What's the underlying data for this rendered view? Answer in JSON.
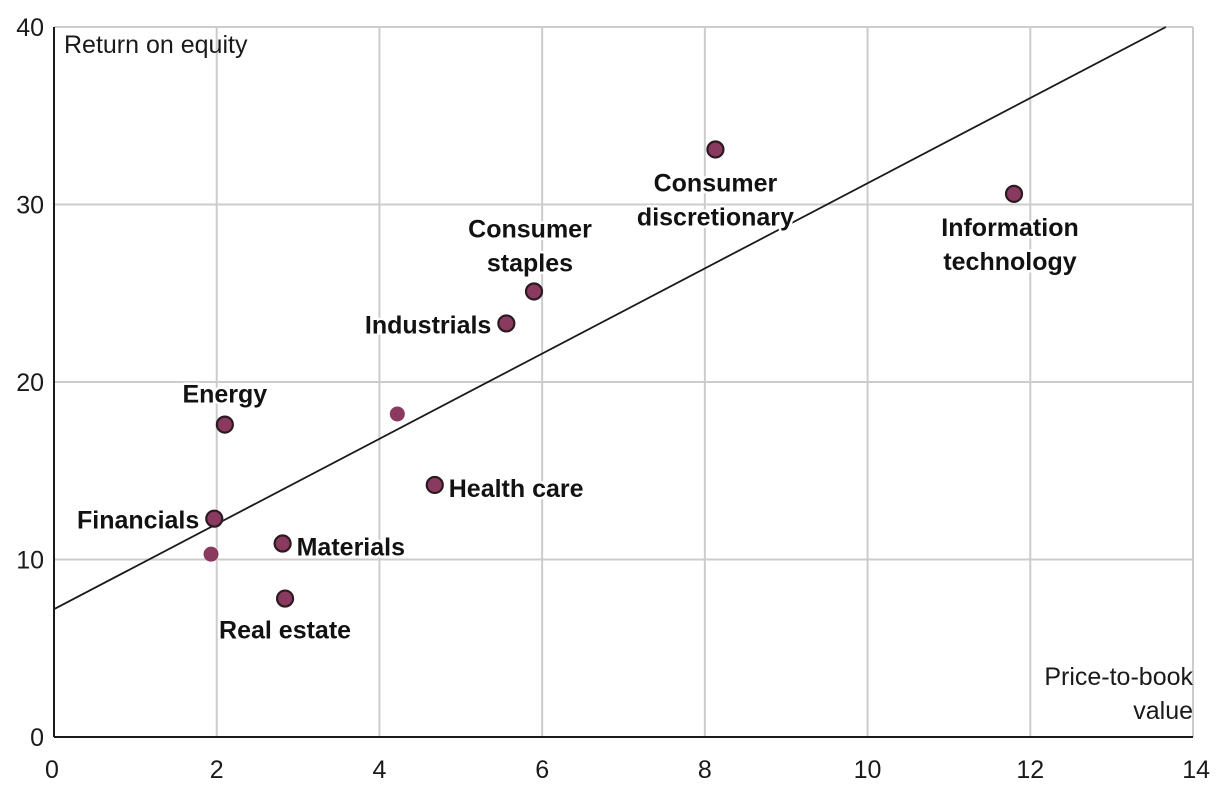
{
  "chart_data": {
    "type": "scatter",
    "ylabel": "Return on equity",
    "xlabel_lines": [
      "Price-to-book",
      "value"
    ],
    "xlim": [
      0,
      14
    ],
    "ylim": [
      0,
      40
    ],
    "xticks": [
      0,
      2,
      4,
      6,
      8,
      10,
      12,
      14
    ],
    "yticks": [
      0,
      10,
      20,
      30,
      40
    ],
    "grid": true,
    "colors": {
      "point": "#8b3a5f",
      "outline": "#2b1a22",
      "grid": "#cccccc",
      "axis": "#1a1a1a",
      "trend": "#1a1a1a"
    },
    "trendline": {
      "intercept": 7.2,
      "slope": 2.4
    },
    "points": [
      {
        "name": "Energy",
        "label_lines": [
          "Energy"
        ],
        "x": 2.1,
        "y": 17.6,
        "outlined": true
      },
      {
        "name": "Financials",
        "label_lines": [
          "Financials"
        ],
        "x": 1.97,
        "y": 12.3,
        "outlined": true
      },
      {
        "name": "Materials",
        "label_lines": [
          "Materials"
        ],
        "x": 2.81,
        "y": 10.9,
        "outlined": true
      },
      {
        "name": "Real estate",
        "label_lines": [
          "Real estate"
        ],
        "x": 2.84,
        "y": 7.8,
        "outlined": true
      },
      {
        "name": "Health care",
        "label_lines": [
          "Health care"
        ],
        "x": 4.68,
        "y": 14.2,
        "outlined": true
      },
      {
        "name": "Industrials",
        "label_lines": [
          "Industrials"
        ],
        "x": 5.56,
        "y": 23.3,
        "outlined": true
      },
      {
        "name": "Consumer staples",
        "label_lines": [
          "Consumer",
          "staples"
        ],
        "x": 5.9,
        "y": 25.1,
        "outlined": true
      },
      {
        "name": "Consumer discretionary",
        "label_lines": [
          "Consumer",
          "discretionary"
        ],
        "x": 8.13,
        "y": 33.1,
        "outlined": true
      },
      {
        "name": "Information technology",
        "label_lines": [
          "Information",
          "technology"
        ],
        "x": 11.8,
        "y": 30.6,
        "outlined": true
      },
      {
        "name": "",
        "label_lines": [],
        "x": 4.22,
        "y": 18.2,
        "outlined": false
      },
      {
        "name": "",
        "label_lines": [],
        "x": 1.93,
        "y": 10.3,
        "outlined": false
      }
    ]
  }
}
